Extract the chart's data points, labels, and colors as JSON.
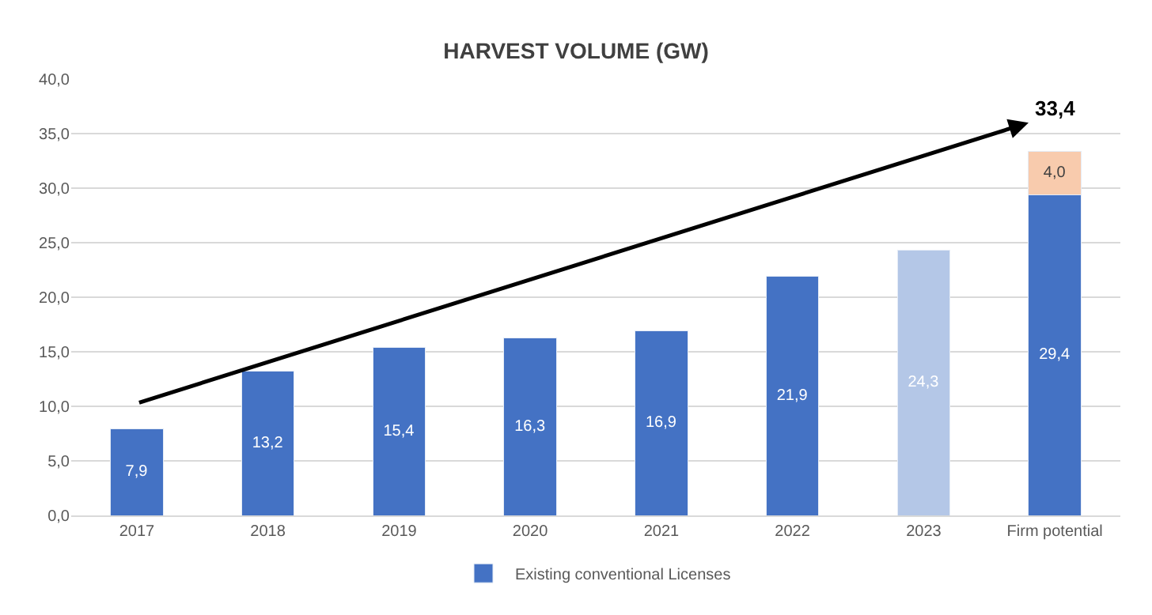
{
  "chart_data": {
    "type": "bar",
    "title": "HARVEST VOLUME (GW)",
    "stacked": true,
    "categories": [
      "2017",
      "2018",
      "2019",
      "2020",
      "2021",
      "2022",
      "2023",
      "Firm potential"
    ],
    "series": [
      {
        "name": "Existing conventional Licenses",
        "color": "#4472c4",
        "colors": [
          "#4472c4",
          "#4472c4",
          "#4472c4",
          "#4472c4",
          "#4472c4",
          "#4472c4",
          "#b4c7e7",
          "#4472c4"
        ],
        "values": [
          7.9,
          13.2,
          15.4,
          16.3,
          16.9,
          21.9,
          24.3,
          29.4
        ],
        "value_labels": [
          "7,9",
          "13,2",
          "15,4",
          "16,3",
          "16,9",
          "21,9",
          "24,3",
          "29,4"
        ]
      },
      {
        "color": "#f8cbad",
        "values": [
          null,
          null,
          null,
          null,
          null,
          null,
          null,
          4.0
        ],
        "value_labels": [
          null,
          null,
          null,
          null,
          null,
          null,
          null,
          "4,0"
        ]
      }
    ],
    "totals": [
      null,
      null,
      null,
      null,
      null,
      null,
      null,
      "33,4"
    ],
    "ylim": [
      0,
      40
    ],
    "yticks": [
      {
        "value": 0,
        "label": "0,0"
      },
      {
        "value": 5,
        "label": "5,0"
      },
      {
        "value": 10,
        "label": "10,0"
      },
      {
        "value": 15,
        "label": "15,0"
      },
      {
        "value": 20,
        "label": "20,0"
      },
      {
        "value": 25,
        "label": "25,0"
      },
      {
        "value": 30,
        "label": "30,0"
      },
      {
        "value": 35,
        "label": "35,0"
      },
      {
        "value": 40,
        "label": "40,0"
      }
    ],
    "grid": "y",
    "legend": "bottom"
  }
}
